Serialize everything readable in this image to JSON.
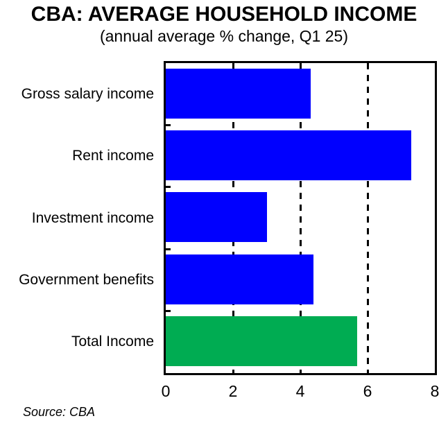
{
  "header": {
    "title": "CBA: AVERAGE HOUSEHOLD INCOME",
    "subtitle": "(annual average % change, Q1 25)"
  },
  "colors": {
    "bar_blue": "#0000FF",
    "bar_green": "#00AC52",
    "axis_black": "#000000",
    "background": "#FFFFFF"
  },
  "source_note": "Source: CBA",
  "chart_data": {
    "type": "bar",
    "orientation": "horizontal",
    "title": "CBA: AVERAGE HOUSEHOLD INCOME",
    "subtitle": "(annual average % change, Q1 25)",
    "categories": [
      "Gross salary income",
      "Rent income",
      "Investment income",
      "Government benefits",
      "Total Income"
    ],
    "values": [
      4.3,
      7.3,
      3.0,
      4.4,
      5.7
    ],
    "bar_colors": [
      "#0000FF",
      "#0000FF",
      "#0000FF",
      "#0000FF",
      "#00AC52"
    ],
    "xlabel": "",
    "ylabel": "",
    "xlim": [
      0,
      8
    ],
    "x_ticks": [
      0,
      2,
      4,
      6,
      8
    ],
    "gridlines_at": [
      2,
      4,
      6
    ],
    "grid_style": "vertical-dashed",
    "legend": "none",
    "source": "Source: CBA"
  }
}
